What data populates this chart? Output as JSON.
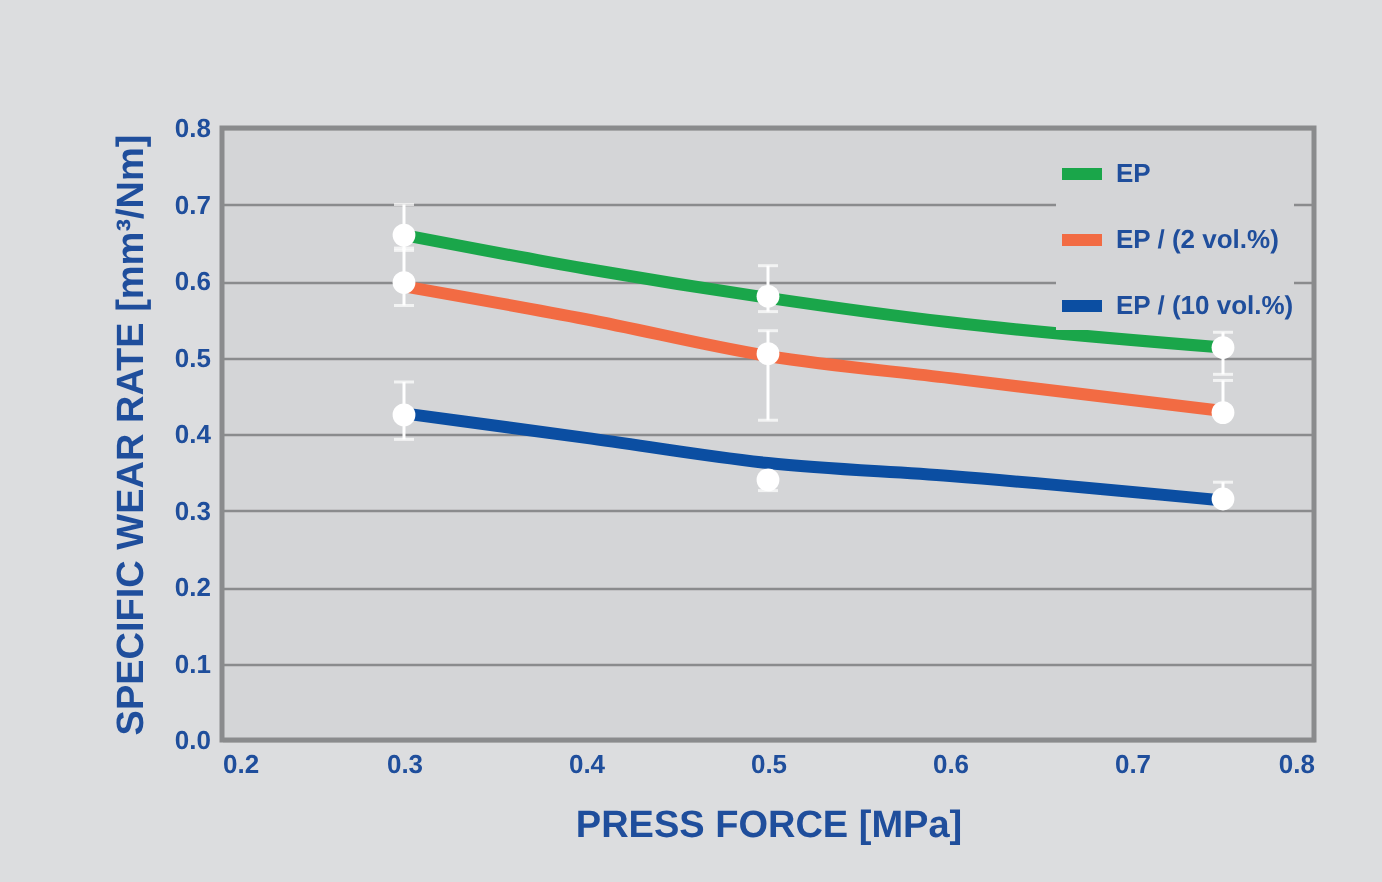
{
  "chart_data": {
    "type": "line",
    "xlabel": "PRESS FORCE [MPa]",
    "ylabel": "SPECIFIC WEAR RATE [mm³/Nm]",
    "xlim": [
      0.2,
      0.8
    ],
    "xticks": [
      0.2,
      0.3,
      0.4,
      0.5,
      0.6,
      0.7,
      0.8
    ],
    "ylim": [
      0,
      0.8
    ],
    "yticks": [
      {
        "value": 0,
        "label": "0.0"
      },
      0.1,
      0.2,
      0.3,
      0.4,
      0.5,
      0.6,
      0.7,
      0.8
    ],
    "grid": "y",
    "legend": "top right",
    "line_style": "solid",
    "series": [
      {
        "name": "EP",
        "type": "line",
        "color": "#1aa64a",
        "x": [
          0.3,
          0.4,
          0.5,
          0.6,
          0.75
        ],
        "values": [
          0.66,
          0.616,
          0.578,
          0.546,
          0.513
        ]
      },
      {
        "name": "EP / (2 vol.%)",
        "type": "line",
        "color": "#f26b43",
        "x": [
          0.3,
          0.4,
          0.5,
          0.6,
          0.75
        ],
        "values": [
          0.593,
          0.55,
          0.502,
          0.473,
          0.43
        ]
      },
      {
        "name": "EP / (10 vol.%)",
        "type": "line",
        "color": "#0b4ea2",
        "x": [
          0.3,
          0.4,
          0.5,
          0.6,
          0.75
        ],
        "values": [
          0.427,
          0.395,
          0.362,
          0.345,
          0.313
        ]
      },
      {
        "type": "scatter",
        "color": "#ffffff",
        "marker": "circle",
        "x": [
          0.3,
          0.5,
          0.75
        ],
        "values": [
          0.66,
          0.58,
          0.513
        ],
        "errors": [
          [
            0.64,
            0.7
          ],
          [
            0.56,
            0.62
          ],
          [
            0.478,
            0.533
          ]
        ]
      },
      {
        "type": "scatter",
        "color": "#ffffff",
        "marker": "circle",
        "x": [
          0.3,
          0.5,
          0.75
        ],
        "values": [
          0.598,
          0.505,
          0.428
        ],
        "errors": [
          [
            0.568,
            0.643
          ],
          [
            0.418,
            0.535
          ],
          [
            0.428,
            0.47
          ]
        ]
      },
      {
        "type": "scatter",
        "color": "#ffffff",
        "marker": "circle",
        "x": [
          0.3,
          0.5,
          0.75
        ],
        "values": [
          0.425,
          0.34,
          0.315
        ],
        "errors": [
          [
            0.393,
            0.468
          ],
          [
            0.326,
            0.34
          ],
          [
            0.315,
            0.337
          ]
        ]
      }
    ]
  }
}
